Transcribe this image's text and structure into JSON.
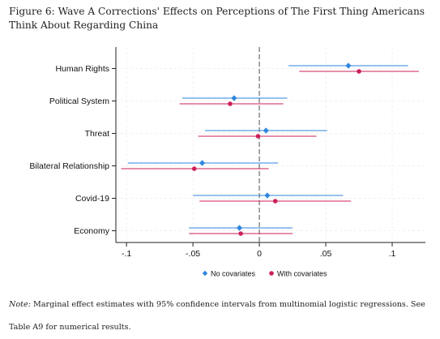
{
  "caption": {
    "figure_label": "Figure 6:",
    "title": "Wave A Corrections' Effects on Perceptions of The First Thing Americans Think About Regarding China"
  },
  "note": {
    "label": "Note:",
    "text": "Marginal effect estimates with 95% confidence intervals from multinomial logistic regressions. See Table A9 for numerical results."
  },
  "chart_data": {
    "type": "coefficient-plot",
    "categories": [
      "Human Rights",
      "Political System",
      "Threat",
      "Bilateral Relationship",
      "Covid-19",
      "Economy"
    ],
    "x_ticks": [
      -0.1,
      -0.05,
      0,
      0.05,
      0.1
    ],
    "x_tick_labels": [
      "-.1",
      "-.05",
      "0",
      ".05",
      ".1"
    ],
    "xlim": [
      -0.108,
      0.125
    ],
    "reference_line": 0,
    "grid": true,
    "legend_position": "bottom",
    "series": [
      {
        "name": "No covariates",
        "color": "#2e86de",
        "marker": "diamond",
        "estimates": [
          0.067,
          -0.019,
          0.005,
          -0.043,
          0.006,
          -0.015
        ],
        "ci_low": [
          0.022,
          -0.058,
          -0.041,
          -0.099,
          -0.05,
          -0.053
        ],
        "ci_high": [
          0.112,
          0.021,
          0.051,
          0.014,
          0.063,
          0.025
        ]
      },
      {
        "name": "With covariates",
        "color": "#cc1f5a",
        "marker": "circle",
        "estimates": [
          0.075,
          -0.022,
          -0.001,
          -0.049,
          0.012,
          -0.014
        ],
        "ci_low": [
          0.03,
          -0.06,
          -0.046,
          -0.104,
          -0.045,
          -0.053
        ],
        "ci_high": [
          0.12,
          0.018,
          0.043,
          0.007,
          0.069,
          0.025
        ]
      }
    ]
  }
}
